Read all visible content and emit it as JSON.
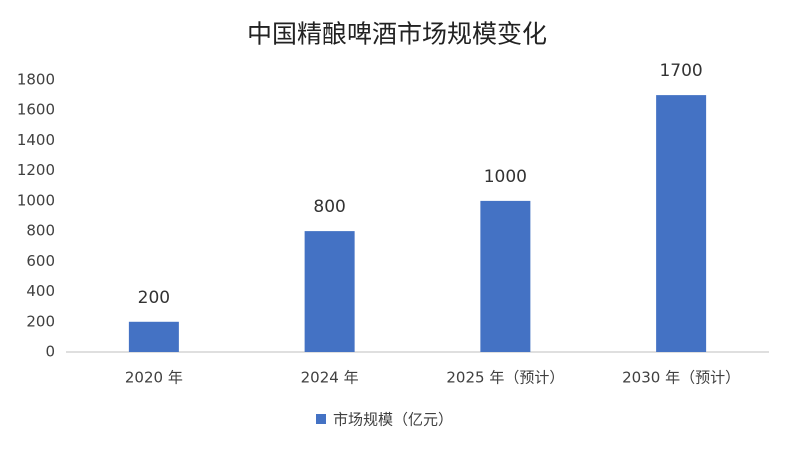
{
  "chart_data": {
    "type": "bar",
    "title": "中国精酿啤酒市场规模变化",
    "categories": [
      "2020 年",
      "2024 年",
      "2025 年（预计）",
      "2030 年（预计）"
    ],
    "series": [
      {
        "name": "市场规模（亿元）",
        "color": "#4472c4",
        "values": [
          200,
          800,
          1000,
          1700
        ]
      }
    ],
    "ylim": [
      0,
      1800
    ],
    "yticks": [
      0,
      200,
      400,
      600,
      800,
      1000,
      1200,
      1400,
      1600,
      1800
    ],
    "grid": false,
    "legend": "bottom",
    "data_labels": true
  }
}
